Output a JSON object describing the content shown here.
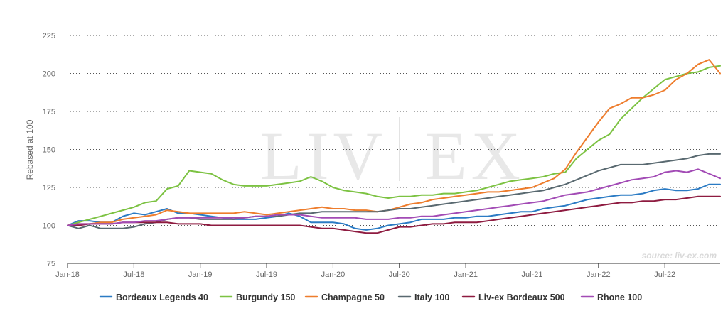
{
  "watermark": {
    "left": "LIV",
    "right": "EX"
  },
  "source_note": "source: liv-ex.com",
  "chart_data": {
    "type": "line",
    "ylabel": "Rebased at 100",
    "ylim": [
      75,
      225
    ],
    "yticks": [
      75,
      100,
      125,
      150,
      175,
      200,
      225
    ],
    "grid": true,
    "legend_position": "bottom",
    "x_start": "Jan-18",
    "x_end": "Dec-22",
    "x": [
      "Jan-18",
      "Feb-18",
      "Mar-18",
      "Apr-18",
      "May-18",
      "Jun-18",
      "Jul-18",
      "Aug-18",
      "Sep-18",
      "Oct-18",
      "Nov-18",
      "Dec-18",
      "Jan-19",
      "Feb-19",
      "Mar-19",
      "Apr-19",
      "May-19",
      "Jun-19",
      "Jul-19",
      "Aug-19",
      "Sep-19",
      "Oct-19",
      "Nov-19",
      "Dec-19",
      "Jan-20",
      "Feb-20",
      "Mar-20",
      "Apr-20",
      "May-20",
      "Jun-20",
      "Jul-20",
      "Aug-20",
      "Sep-20",
      "Oct-20",
      "Nov-20",
      "Dec-20",
      "Jan-21",
      "Feb-21",
      "Mar-21",
      "Apr-21",
      "May-21",
      "Jun-21",
      "Jul-21",
      "Aug-21",
      "Sep-21",
      "Oct-21",
      "Nov-21",
      "Dec-21",
      "Jan-22",
      "Feb-22",
      "Mar-22",
      "Apr-22",
      "May-22",
      "Jun-22",
      "Jul-22",
      "Aug-22",
      "Sep-22",
      "Oct-22",
      "Nov-22",
      "Dec-22"
    ],
    "x_tick_labels": [
      {
        "index": 0,
        "label": "Jan-18"
      },
      {
        "index": 6,
        "label": "Jul-18"
      },
      {
        "index": 12,
        "label": "Jan-19"
      },
      {
        "index": 18,
        "label": "Jul-19"
      },
      {
        "index": 24,
        "label": "Jan-20"
      },
      {
        "index": 30,
        "label": "Jul-20"
      },
      {
        "index": 36,
        "label": "Jan-21"
      },
      {
        "index": 42,
        "label": "Jul-21"
      },
      {
        "index": 48,
        "label": "Jan-22"
      },
      {
        "index": 54,
        "label": "Jul-22"
      }
    ],
    "series": [
      {
        "name": "Bordeaux Legends 40",
        "color": "#2b7bc4",
        "values": [
          100,
          103,
          103,
          102,
          102,
          106,
          108,
          107,
          109,
          111,
          108,
          108,
          107,
          106,
          105,
          104,
          104,
          104,
          105,
          106,
          108,
          106,
          102,
          102,
          102,
          101,
          98,
          97,
          98,
          100,
          101,
          102,
          104,
          104,
          104,
          105,
          105,
          106,
          106,
          107,
          108,
          109,
          109,
          111,
          112,
          113,
          115,
          117,
          118,
          119,
          120,
          120,
          121,
          123,
          124,
          123,
          123,
          124,
          127,
          127
        ]
      },
      {
        "name": "Burgundy 150",
        "color": "#7cc242",
        "values": [
          100,
          102,
          104,
          106,
          108,
          110,
          112,
          115,
          116,
          124,
          126,
          136,
          135,
          134,
          130,
          127,
          126,
          126,
          126,
          127,
          128,
          129,
          132,
          129,
          125,
          123,
          122,
          121,
          119,
          118,
          119,
          119,
          120,
          120,
          121,
          121,
          122,
          123,
          125,
          127,
          129,
          130,
          131,
          132,
          134,
          135,
          144,
          150,
          156,
          160,
          170,
          177,
          184,
          190,
          196,
          198,
          200,
          201,
          204,
          205
        ]
      },
      {
        "name": "Champagne 50",
        "color": "#ee7d2d",
        "values": [
          100,
          101,
          101,
          102,
          102,
          104,
          105,
          106,
          107,
          110,
          109,
          108,
          108,
          108,
          108,
          108,
          109,
          108,
          107,
          108,
          109,
          110,
          111,
          112,
          111,
          111,
          110,
          110,
          109,
          110,
          112,
          114,
          115,
          117,
          118,
          119,
          120,
          121,
          122,
          122,
          123,
          124,
          125,
          128,
          131,
          137,
          148,
          158,
          168,
          177,
          180,
          184,
          184,
          186,
          189,
          196,
          200,
          206,
          209,
          200
        ]
      },
      {
        "name": "Italy 100",
        "color": "#596970",
        "values": [
          100,
          98,
          100,
          98,
          98,
          98,
          99,
          101,
          102,
          104,
          105,
          105,
          104,
          104,
          104,
          104,
          105,
          106,
          106,
          106,
          107,
          108,
          108,
          109,
          109,
          109,
          109,
          109,
          109,
          110,
          111,
          111,
          112,
          113,
          114,
          115,
          116,
          117,
          118,
          119,
          120,
          121,
          122,
          123,
          125,
          127,
          130,
          133,
          136,
          138,
          140,
          140,
          140,
          141,
          142,
          143,
          144,
          146,
          147,
          147
        ]
      },
      {
        "name": "Liv-ex Bordeaux 500",
        "color": "#8e1b40",
        "values": [
          100,
          100,
          101,
          101,
          101,
          102,
          102,
          102,
          102,
          102,
          101,
          101,
          101,
          100,
          100,
          100,
          100,
          100,
          100,
          100,
          100,
          100,
          99,
          98,
          98,
          97,
          96,
          95,
          95,
          97,
          99,
          99,
          100,
          101,
          101,
          102,
          102,
          102,
          103,
          104,
          105,
          106,
          107,
          108,
          109,
          110,
          111,
          112,
          113,
          114,
          115,
          115,
          116,
          116,
          117,
          117,
          118,
          119,
          119,
          119
        ]
      },
      {
        "name": "Rhone 100",
        "color": "#a24bb5",
        "values": [
          100,
          101,
          101,
          101,
          101,
          102,
          102,
          103,
          103,
          104,
          105,
          105,
          105,
          105,
          105,
          105,
          105,
          106,
          106,
          107,
          107,
          107,
          106,
          105,
          105,
          105,
          105,
          104,
          104,
          104,
          105,
          105,
          106,
          106,
          107,
          108,
          109,
          110,
          111,
          112,
          113,
          114,
          115,
          116,
          118,
          120,
          121,
          122,
          124,
          126,
          128,
          130,
          131,
          132,
          135,
          136,
          135,
          137,
          134,
          131
        ]
      }
    ]
  }
}
